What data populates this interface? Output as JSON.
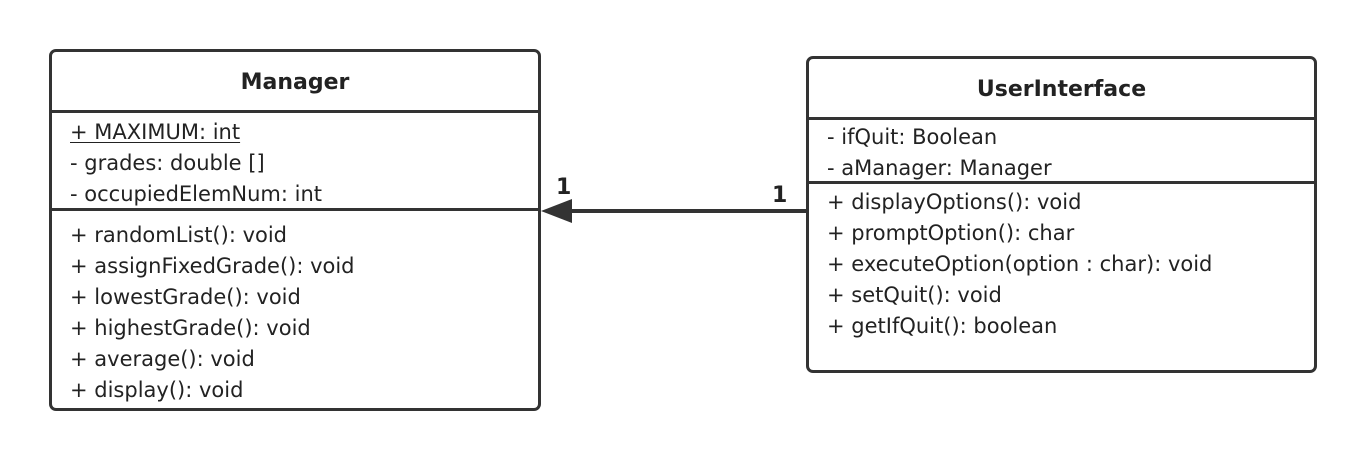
{
  "classes": {
    "manager": {
      "name": "Manager",
      "attributes": [
        {
          "text": "+ MAXIMUM: int",
          "static": true
        },
        {
          "text": "- grades: double []",
          "static": false
        },
        {
          "text": "- occupiedElemNum: int",
          "static": false
        }
      ],
      "operations": [
        "+ randomList(): void",
        "+ assignFixedGrade(): void",
        "+ lowestGrade(): void",
        "+ highestGrade(): void",
        "+ average(): void",
        "+ display(): void"
      ]
    },
    "userinterface": {
      "name": "UserInterface",
      "attributes": [
        {
          "text": "- ifQuit: Boolean",
          "static": false
        },
        {
          "text": "- aManager: Manager",
          "static": false
        }
      ],
      "operations": [
        "+ displayOptions(): void",
        "+ promptOption(): char",
        "+ executeOption(option : char): void",
        "+ setQuit(): void",
        "+ getIfQuit(): boolean"
      ]
    }
  },
  "association": {
    "source": "UserInterface",
    "target": "Manager",
    "navigable_to": "Manager",
    "source_multiplicity": "1",
    "target_multiplicity": "1"
  },
  "colors": {
    "stroke": "#333333",
    "text": "#222222",
    "background": "#ffffff"
  }
}
